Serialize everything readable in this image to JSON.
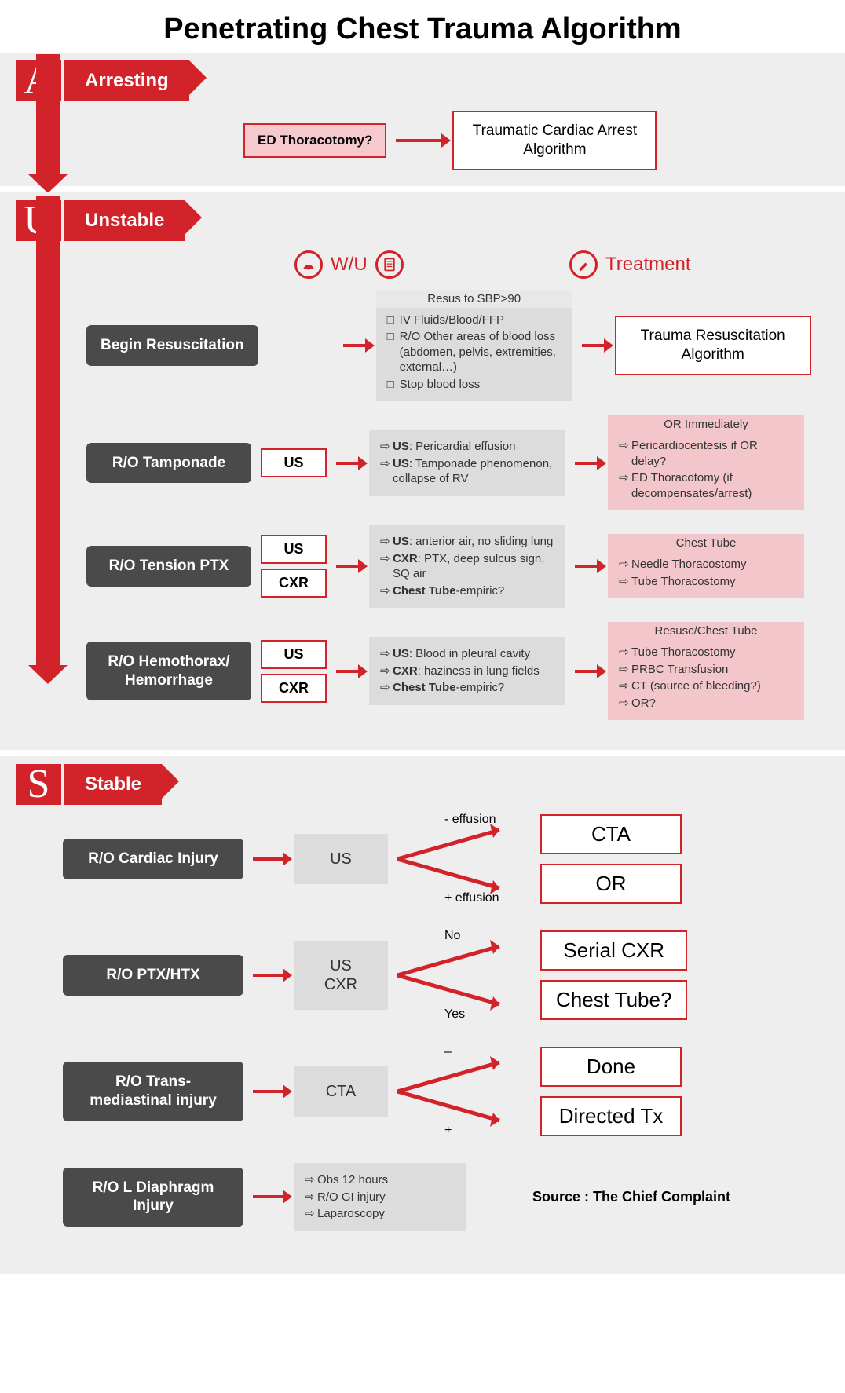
{
  "title": "Penetrating Chest Trauma Algorithm",
  "colors": {
    "red": "#d2232a",
    "dark": "#4a4a4a",
    "pink": "#f2c6cb",
    "gray": "#dcdcdc",
    "bg": "#eeeeee"
  },
  "sections": {
    "a": {
      "letter": "A",
      "label": "Arresting",
      "question": "ED Thoracotomy?",
      "output": "Traumatic Cardiac Arrest Algorithm"
    },
    "u": {
      "letter": "U",
      "label": "Unstable",
      "col_wu": "W/U",
      "col_tx": "Treatment",
      "rows": [
        {
          "name": "Begin Resuscitation",
          "tags": [],
          "wu": {
            "hdr": "Resus to SBP>90",
            "items": [
              "IV Fluids/Blood/FFP",
              "R/O Other areas of blood loss (abdomen, pelvis, extremities, external…)",
              "Stop blood loss"
            ],
            "style": "sq"
          },
          "tx_white": "Trauma Resuscitation Algorithm"
        },
        {
          "name": "R/O Tamponade",
          "tags": [
            "US"
          ],
          "wu": {
            "items": [
              "<b>US</b>: Pericardial effusion",
              "<b>US</b>: Tamponade phenomenon, collapse of RV"
            ],
            "style": "ar"
          },
          "tx": {
            "hdr": "OR Immediately",
            "items": [
              "Pericardiocentesis if OR delay?",
              "ED Thoracotomy (if decompensates/arrest)"
            ]
          }
        },
        {
          "name": "R/O Tension PTX",
          "tags": [
            "US",
            "CXR"
          ],
          "wu": {
            "items": [
              "<b>US</b>: anterior air, no sliding lung",
              "<b>CXR</b>: PTX, deep sulcus sign, SQ air",
              "<b>Chest Tube</b>-empiric?"
            ],
            "style": "ar"
          },
          "tx": {
            "hdr": "Chest Tube",
            "items": [
              "Needle Thoracostomy",
              "Tube Thoracostomy"
            ]
          }
        },
        {
          "name": "R/O Hemothorax/ Hemorrhage",
          "tags": [
            "US",
            "CXR"
          ],
          "wu": {
            "items": [
              "<b>US</b>: Blood in pleural cavity",
              "<b>CXR</b>: haziness in lung fields",
              "<b>Chest Tube</b>-empiric?"
            ],
            "style": "ar"
          },
          "tx": {
            "hdr": "Resusc/Chest Tube",
            "items": [
              "Tube Thoracostomy",
              "PRBC Transfusion",
              "CT (source of bleeding?)",
              "OR?"
            ]
          }
        }
      ]
    },
    "s": {
      "letter": "S",
      "label": "Stable",
      "rows": [
        {
          "name": "R/O Cardiac Injury",
          "test": "US",
          "branch": [
            "- effusion",
            "+ effusion"
          ],
          "outs": [
            "CTA",
            "OR"
          ]
        },
        {
          "name": "R/O PTX/HTX",
          "test": "US\nCXR",
          "branch": [
            "No",
            "Yes"
          ],
          "outs": [
            "Serial CXR",
            "Chest Tube?"
          ]
        },
        {
          "name": "R/O Trans-mediastinal injury",
          "test": "CTA",
          "branch": [
            "–",
            "+"
          ],
          "outs": [
            "Done",
            "Directed Tx"
          ]
        },
        {
          "name": "R/O L Diaphragm Injury",
          "wu_items": [
            "Obs 12 hours",
            "R/O GI injury",
            "Laparoscopy"
          ],
          "source": "Source : The Chief Complaint"
        }
      ]
    }
  }
}
